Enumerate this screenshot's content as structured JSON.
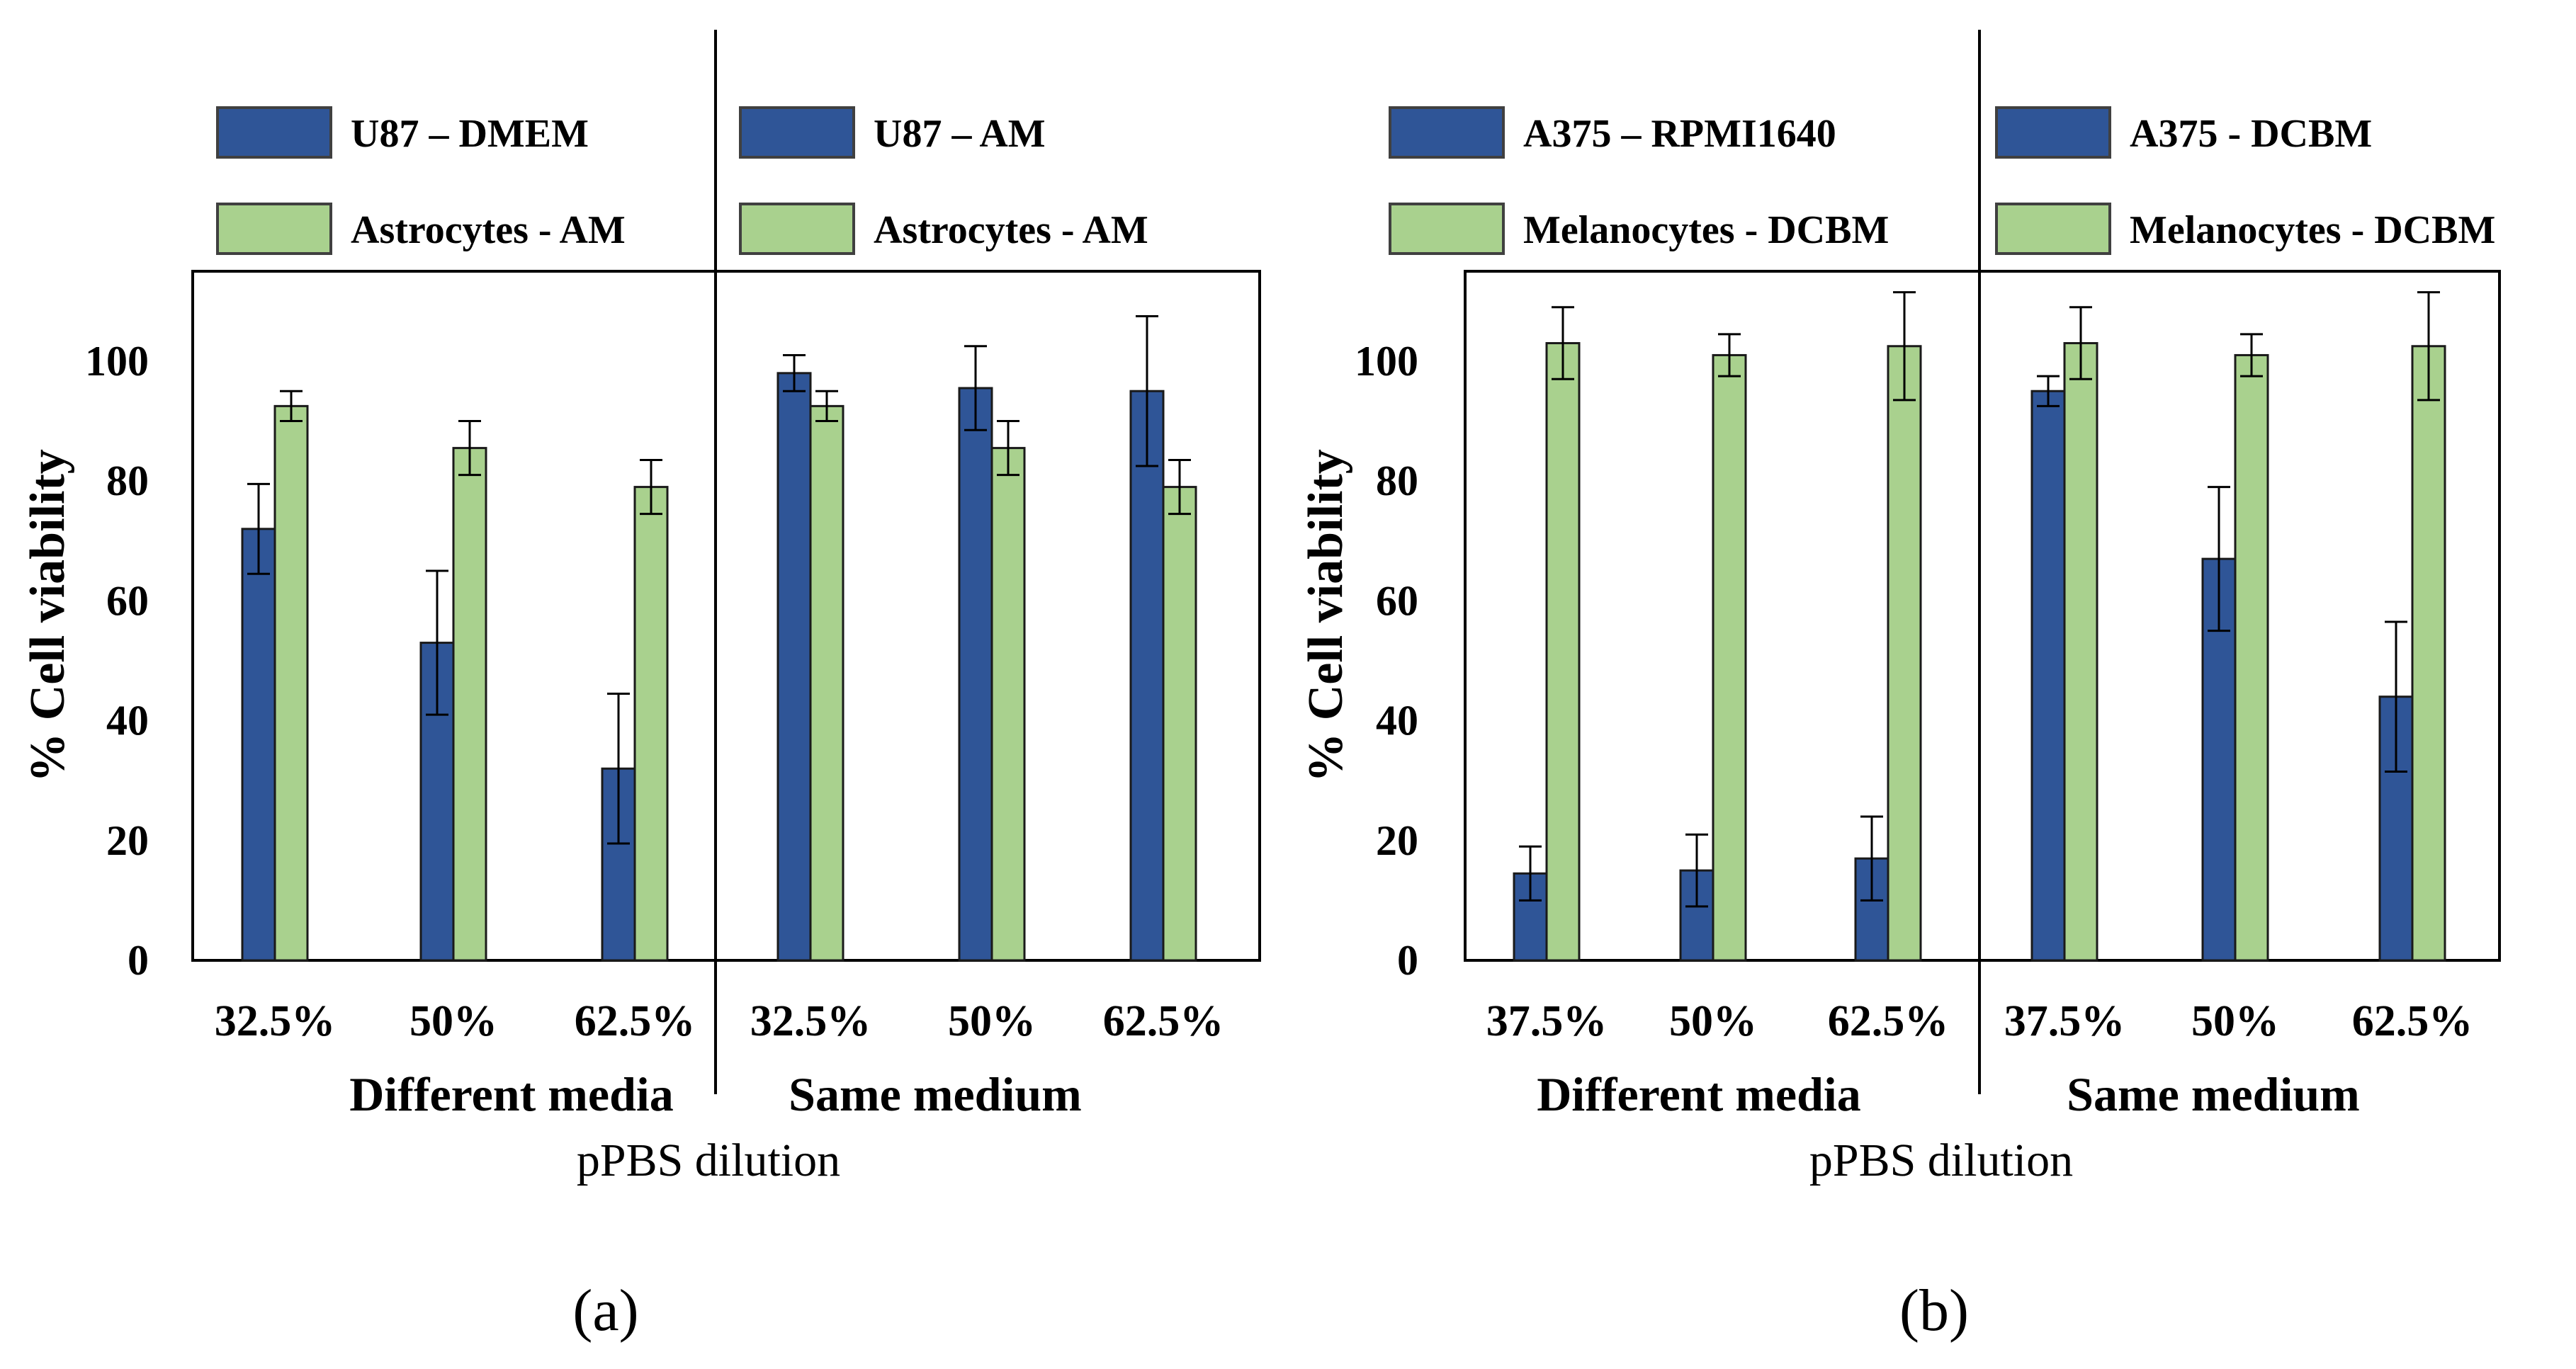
{
  "chart_data": [
    {
      "type": "bar",
      "panel_label": "(a)",
      "ylabel": "% Cell viability",
      "xlabel": "pPBS dilution",
      "ylim": [
        0,
        115
      ],
      "yticks": [
        "0",
        "20",
        "40",
        "60",
        "80",
        "100"
      ],
      "groups": [
        {
          "name": "Different media",
          "categories": [
            "32.5%",
            "50%",
            "62.5%"
          ],
          "legend": [
            "U87 – DMEM",
            "Astrocytes - AM"
          ],
          "series": [
            {
              "name": "U87 – DMEM",
              "color": "#2f5597",
              "values": [
                72,
                53,
                32
              ],
              "errors": [
                7.5,
                12,
                12.5
              ]
            },
            {
              "name": "Astrocytes - AM",
              "color": "#a9d18e",
              "values": [
                92.5,
                85.5,
                79
              ],
              "errors": [
                2.5,
                4.5,
                4.5
              ]
            }
          ]
        },
        {
          "name": "Same medium",
          "categories": [
            "32.5%",
            "50%",
            "62.5%"
          ],
          "legend": [
            "U87 – AM",
            "Astrocytes - AM"
          ],
          "series": [
            {
              "name": "U87 – AM",
              "color": "#2f5597",
              "values": [
                98,
                95.5,
                95
              ],
              "errors": [
                3,
                7,
                12.5
              ]
            },
            {
              "name": "Astrocytes - AM",
              "color": "#a9d18e",
              "values": [
                92.5,
                85.5,
                79
              ],
              "errors": [
                2.5,
                4.5,
                4.5
              ]
            }
          ]
        }
      ]
    },
    {
      "type": "bar",
      "panel_label": "(b)",
      "ylabel": "% Cell viability",
      "xlabel": "pPBS dilution",
      "ylim": [
        0,
        115
      ],
      "yticks": [
        "0",
        "20",
        "40",
        "60",
        "80",
        "100"
      ],
      "groups": [
        {
          "name": "Different media",
          "categories": [
            "37.5%",
            "50%",
            "62.5%"
          ],
          "legend": [
            "A375 – RPMI1640",
            "Melanocytes - DCBM"
          ],
          "series": [
            {
              "name": "A375 – RPMI1640",
              "color": "#2f5597",
              "values": [
                14.5,
                15,
                17
              ],
              "errors": [
                4.5,
                6,
                7
              ]
            },
            {
              "name": "Melanocytes - DCBM",
              "color": "#a9d18e",
              "values": [
                103,
                101,
                102.5
              ],
              "errors": [
                6,
                3.5,
                9
              ]
            }
          ]
        },
        {
          "name": "Same medium",
          "categories": [
            "37.5%",
            "50%",
            "62.5%"
          ],
          "legend": [
            "A375 - DCBM",
            "Melanocytes - DCBM"
          ],
          "series": [
            {
              "name": "A375 - DCBM",
              "color": "#2f5597",
              "values": [
                95,
                67,
                44
              ],
              "errors": [
                2.5,
                12,
                12.5
              ]
            },
            {
              "name": "Melanocytes - DCBM",
              "color": "#a9d18e",
              "values": [
                103,
                101,
                102.5
              ],
              "errors": [
                6,
                3.5,
                9
              ]
            }
          ]
        }
      ]
    }
  ]
}
